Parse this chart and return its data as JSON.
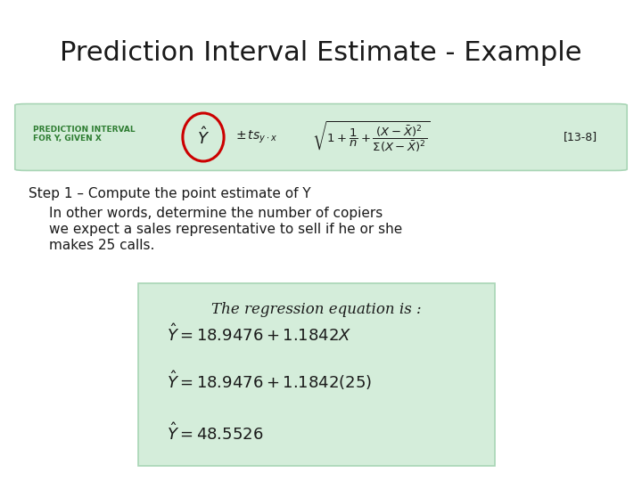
{
  "title": "Prediction Interval Estimate - Example",
  "title_fontsize": 22,
  "bg_color": "#ffffff",
  "formula_box_facecolor": "#d4edda",
  "formula_box_edgecolor": "#a8d5b5",
  "label_text": "PREDICTION INTERVAL\nFOR Y, GIVEN X",
  "label_color": "#2e7d32",
  "label_fontsize": 6.5,
  "circle_color": "#cc0000",
  "ref_text": "[13-8]",
  "step_text": "Step 1 – Compute the point estimate of Y",
  "step_fontsize": 11,
  "body_lines": [
    "In other words, determine the number of copiers",
    "we expect a sales representative to sell if he or she",
    "makes 25 calls."
  ],
  "body_fontsize": 11,
  "reg_title": "The regression equation is :",
  "reg_title_fontsize": 12,
  "eq_fontsize": 13,
  "reg_box_facecolor": "#d4edda",
  "reg_box_edgecolor": "#a8d5b5"
}
